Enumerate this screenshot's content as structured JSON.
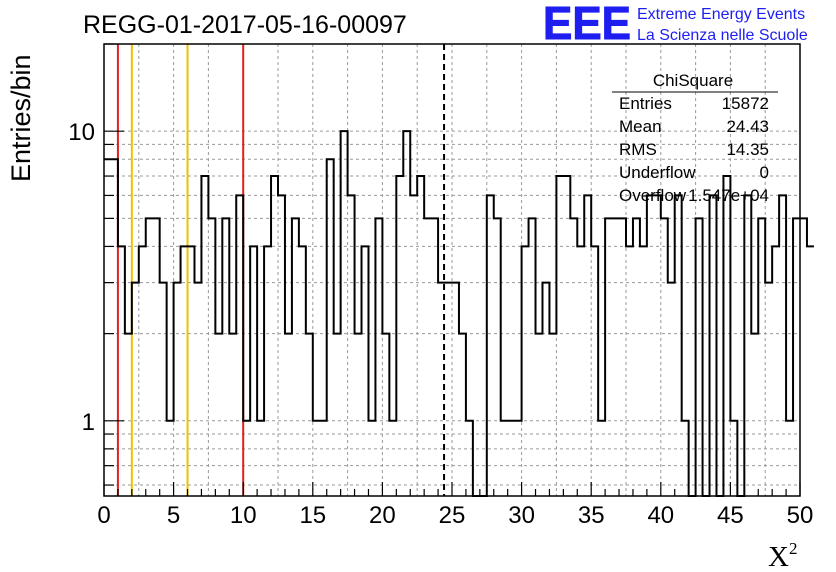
{
  "chart_data": {
    "type": "bar",
    "title": "REGG-01-2017-05-16-00097",
    "xlabel": "X",
    "xlabel_sup": "2",
    "ylabel": "Entries/bin",
    "xlim": [
      0,
      50
    ],
    "ylim": [
      0.55,
      20
    ],
    "yscale": "log",
    "grid": true,
    "x_ticks": [
      "0",
      "5",
      "10",
      "15",
      "20",
      "25",
      "30",
      "35",
      "40",
      "45",
      "50"
    ],
    "y_ticks": [
      "1",
      "10"
    ],
    "bin_width": 0.5,
    "values": [
      8,
      8,
      4,
      2,
      3,
      4,
      5,
      5,
      3,
      1,
      3,
      4,
      4,
      3,
      7,
      5,
      2,
      5,
      2,
      6,
      1,
      4,
      1,
      4,
      7,
      6,
      2,
      5,
      4,
      2,
      1,
      1,
      8,
      2,
      10,
      6,
      2,
      4,
      1,
      5,
      2,
      1,
      7,
      10,
      6,
      7,
      5,
      5,
      3,
      3,
      3,
      2,
      1,
      0,
      0,
      6,
      5,
      1,
      1,
      1,
      4,
      5,
      2,
      3,
      2,
      7,
      7,
      5,
      4,
      6,
      4,
      1,
      5,
      5,
      5,
      4,
      5,
      4,
      6,
      6,
      5,
      3,
      6,
      1,
      0,
      5,
      0,
      6,
      0,
      7,
      1,
      0,
      6,
      2,
      5,
      3,
      4,
      6,
      1,
      5,
      5,
      4
    ],
    "reference_lines": [
      {
        "x": 1,
        "color": "#e02020"
      },
      {
        "x": 2,
        "color": "#f0c000"
      },
      {
        "x": 6,
        "color": "#f0c000"
      },
      {
        "x": 10,
        "color": "#e02020"
      },
      {
        "x": 24.43,
        "color": "#000000",
        "style": "dashed"
      }
    ],
    "stats_box": {
      "title": "ChiSquare",
      "rows": [
        {
          "label": "Entries",
          "value": "15872"
        },
        {
          "label": "Mean",
          "value": "24.43"
        },
        {
          "label": "RMS",
          "value": "14.35"
        },
        {
          "label": "Underflow",
          "value": "0"
        },
        {
          "label": "Overflow",
          "value": "1.547e+04"
        }
      ]
    }
  },
  "logo": {
    "text": "EEE",
    "line1": "Extreme Energy Events",
    "line2": "La Scienza nelle Scuole",
    "color": "#1e1ef0"
  }
}
